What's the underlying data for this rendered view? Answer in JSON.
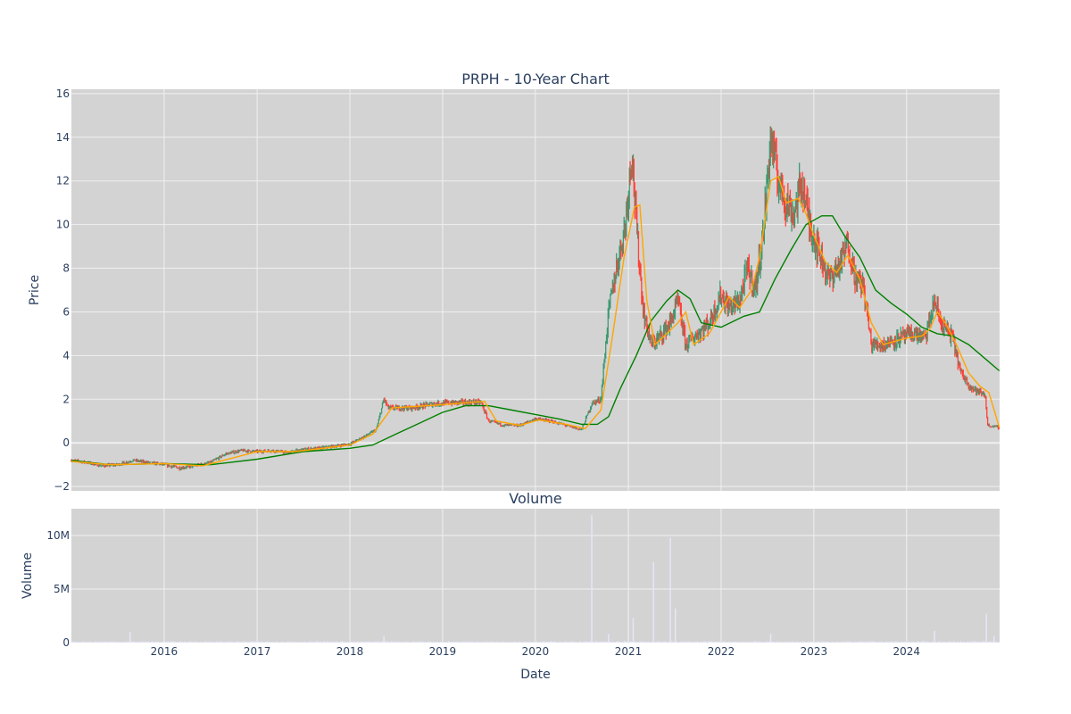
{
  "chart_data": [
    {
      "type": "candlestick",
      "title": "PRPH - 10-Year Chart",
      "ylabel": "Price",
      "ylim": [
        -2.2,
        16.2
      ],
      "y_ticks": [
        -2,
        0,
        2,
        4,
        6,
        8,
        10,
        12,
        14,
        16
      ],
      "x_range": [
        "2015-01-01",
        "2025-01-01"
      ],
      "x_ticks": [
        "2016",
        "2017",
        "2018",
        "2019",
        "2020",
        "2021",
        "2022",
        "2023",
        "2024"
      ],
      "grid": true,
      "legend": "none",
      "colors": {
        "increasing": "#3d9970",
        "decreasing": "#ff4136",
        "ma_short": "#ffa500",
        "ma_long": "#008000",
        "background": "#d3d3d3",
        "grid": "#f0f0f0"
      },
      "series": [
        {
          "kind": "close",
          "points": [
            [
              "2015-01-01",
              -0.8
            ],
            [
              "2015-03-01",
              -0.9
            ],
            [
              "2015-05-01",
              -1.05
            ],
            [
              "2015-07-01",
              -1.0
            ],
            [
              "2015-09-01",
              -0.8
            ],
            [
              "2015-11-01",
              -0.9
            ],
            [
              "2016-01-01",
              -1.0
            ],
            [
              "2016-03-01",
              -1.15
            ],
            [
              "2016-05-01",
              -1.05
            ],
            [
              "2016-07-01",
              -0.9
            ],
            [
              "2016-09-01",
              -0.5
            ],
            [
              "2016-11-01",
              -0.35
            ],
            [
              "2017-01-01",
              -0.4
            ],
            [
              "2017-03-01",
              -0.35
            ],
            [
              "2017-05-01",
              -0.45
            ],
            [
              "2017-07-01",
              -0.3
            ],
            [
              "2017-09-01",
              -0.25
            ],
            [
              "2017-11-01",
              -0.15
            ],
            [
              "2018-01-01",
              -0.05
            ],
            [
              "2018-03-01",
              0.3
            ],
            [
              "2018-04-15",
              0.6
            ],
            [
              "2018-05-15",
              2.0
            ],
            [
              "2018-06-01",
              1.6
            ],
            [
              "2018-09-01",
              1.6
            ],
            [
              "2018-12-01",
              1.8
            ],
            [
              "2019-03-01",
              1.85
            ],
            [
              "2019-06-01",
              1.85
            ],
            [
              "2019-07-01",
              1.0
            ],
            [
              "2019-09-01",
              0.8
            ],
            [
              "2019-11-01",
              0.8
            ],
            [
              "2020-01-01",
              1.1
            ],
            [
              "2020-03-01",
              1.0
            ],
            [
              "2020-05-01",
              0.8
            ],
            [
              "2020-07-01",
              0.6
            ],
            [
              "2020-08-10",
              1.8
            ],
            [
              "2020-09-15",
              2.0
            ],
            [
              "2020-10-15",
              6.0
            ],
            [
              "2020-11-15",
              8.0
            ],
            [
              "2020-12-20",
              10.0
            ],
            [
              "2021-01-15",
              13.5
            ],
            [
              "2021-02-01",
              10.0
            ],
            [
              "2021-03-01",
              6.0
            ],
            [
              "2021-04-01",
              4.5
            ],
            [
              "2021-05-01",
              4.8
            ],
            [
              "2021-06-15",
              5.5
            ],
            [
              "2021-07-15",
              6.5
            ],
            [
              "2021-08-15",
              4.5
            ],
            [
              "2021-10-01",
              5.0
            ],
            [
              "2021-11-15",
              5.5
            ],
            [
              "2022-01-01",
              6.8
            ],
            [
              "2022-02-01",
              6.2
            ],
            [
              "2022-03-15",
              6.5
            ],
            [
              "2022-04-15",
              8.0
            ],
            [
              "2022-05-15",
              7.0
            ],
            [
              "2022-06-15",
              9.5
            ],
            [
              "2022-07-15",
              14.0
            ],
            [
              "2022-08-15",
              12.0
            ],
            [
              "2022-09-15",
              11.0
            ],
            [
              "2022-10-15",
              10.5
            ],
            [
              "2022-11-15",
              12.0
            ],
            [
              "2022-12-15",
              10.0
            ],
            [
              "2023-01-15",
              9.0
            ],
            [
              "2023-03-01",
              7.5
            ],
            [
              "2023-04-15",
              8.2
            ],
            [
              "2023-05-15",
              9.2
            ],
            [
              "2023-06-15",
              7.5
            ],
            [
              "2023-07-15",
              7.2
            ],
            [
              "2023-08-15",
              4.5
            ],
            [
              "2023-10-01",
              4.5
            ],
            [
              "2023-12-01",
              4.8
            ],
            [
              "2024-02-01",
              5.0
            ],
            [
              "2024-03-15",
              4.8
            ],
            [
              "2024-04-20",
              6.5
            ],
            [
              "2024-05-15",
              5.5
            ],
            [
              "2024-07-01",
              4.8
            ],
            [
              "2024-08-01",
              3.2
            ],
            [
              "2024-09-15",
              2.5
            ],
            [
              "2024-10-15",
              2.3
            ],
            [
              "2024-11-05",
              2.2
            ],
            [
              "2024-11-15",
              0.8
            ],
            [
              "2024-12-31",
              0.7
            ]
          ]
        },
        {
          "kind": "ma_short",
          "points": [
            [
              "2015-01-01",
              -0.85
            ],
            [
              "2015-06-01",
              -1.0
            ],
            [
              "2016-01-01",
              -0.95
            ],
            [
              "2016-06-01",
              -1.05
            ],
            [
              "2017-01-01",
              -0.4
            ],
            [
              "2017-06-01",
              -0.4
            ],
            [
              "2018-01-01",
              -0.1
            ],
            [
              "2018-04-01",
              0.4
            ],
            [
              "2018-06-15",
              1.6
            ],
            [
              "2019-01-01",
              1.75
            ],
            [
              "2019-06-15",
              1.9
            ],
            [
              "2019-08-01",
              1.0
            ],
            [
              "2019-11-01",
              0.8
            ],
            [
              "2020-01-15",
              1.05
            ],
            [
              "2020-05-01",
              0.85
            ],
            [
              "2020-07-15",
              0.65
            ],
            [
              "2020-09-15",
              1.5
            ],
            [
              "2020-11-01",
              5.0
            ],
            [
              "2020-12-15",
              8.5
            ],
            [
              "2021-01-25",
              10.8
            ],
            [
              "2021-02-15",
              10.9
            ],
            [
              "2021-03-15",
              6.5
            ],
            [
              "2021-04-15",
              4.5
            ],
            [
              "2021-06-01",
              5.0
            ],
            [
              "2021-07-15",
              5.5
            ],
            [
              "2021-08-15",
              6.0
            ],
            [
              "2021-09-15",
              4.5
            ],
            [
              "2021-11-15",
              5.0
            ],
            [
              "2022-01-01",
              6.0
            ],
            [
              "2022-02-01",
              6.7
            ],
            [
              "2022-03-15",
              6.2
            ],
            [
              "2022-05-01",
              7.0
            ],
            [
              "2022-06-01",
              8.5
            ],
            [
              "2022-07-15",
              12.0
            ],
            [
              "2022-08-15",
              12.2
            ],
            [
              "2022-09-15",
              11.0
            ],
            [
              "2022-11-01",
              11.2
            ],
            [
              "2022-12-01",
              10.5
            ],
            [
              "2023-01-01",
              9.5
            ],
            [
              "2023-02-15",
              8.3
            ],
            [
              "2023-04-01",
              7.8
            ],
            [
              "2023-05-15",
              8.6
            ],
            [
              "2023-07-01",
              7.5
            ],
            [
              "2023-08-15",
              5.5
            ],
            [
              "2023-10-01",
              4.5
            ],
            [
              "2024-01-01",
              4.8
            ],
            [
              "2024-03-01",
              4.9
            ],
            [
              "2024-04-01",
              5.2
            ],
            [
              "2024-05-01",
              6.0
            ],
            [
              "2024-06-01",
              5.5
            ],
            [
              "2024-07-15",
              4.5
            ],
            [
              "2024-09-01",
              3.2
            ],
            [
              "2024-10-15",
              2.6
            ],
            [
              "2024-11-20",
              2.3
            ],
            [
              "2024-12-31",
              0.7
            ]
          ]
        },
        {
          "kind": "ma_long",
          "points": [
            [
              "2015-01-01",
              -0.8
            ],
            [
              "2015-06-01",
              -1.0
            ],
            [
              "2016-01-01",
              -0.95
            ],
            [
              "2016-07-01",
              -1.0
            ],
            [
              "2017-01-01",
              -0.75
            ],
            [
              "2017-07-01",
              -0.4
            ],
            [
              "2018-01-01",
              -0.25
            ],
            [
              "2018-04-01",
              -0.1
            ],
            [
              "2018-07-01",
              0.4
            ],
            [
              "2018-10-01",
              0.9
            ],
            [
              "2019-01-01",
              1.4
            ],
            [
              "2019-04-01",
              1.7
            ],
            [
              "2019-07-01",
              1.7
            ],
            [
              "2019-10-01",
              1.5
            ],
            [
              "2020-01-01",
              1.3
            ],
            [
              "2020-04-01",
              1.1
            ],
            [
              "2020-07-01",
              0.85
            ],
            [
              "2020-09-01",
              0.85
            ],
            [
              "2020-10-15",
              1.2
            ],
            [
              "2020-12-01",
              2.5
            ],
            [
              "2021-02-01",
              4.0
            ],
            [
              "2021-04-01",
              5.6
            ],
            [
              "2021-06-01",
              6.5
            ],
            [
              "2021-07-15",
              7.0
            ],
            [
              "2021-09-01",
              6.6
            ],
            [
              "2021-10-15",
              5.5
            ],
            [
              "2022-01-01",
              5.3
            ],
            [
              "2022-04-01",
              5.8
            ],
            [
              "2022-06-01",
              6.0
            ],
            [
              "2022-08-01",
              7.5
            ],
            [
              "2022-10-01",
              8.8
            ],
            [
              "2022-12-01",
              10.0
            ],
            [
              "2023-02-01",
              10.4
            ],
            [
              "2023-03-15",
              10.4
            ],
            [
              "2023-05-01",
              9.5
            ],
            [
              "2023-07-01",
              8.5
            ],
            [
              "2023-09-01",
              7.0
            ],
            [
              "2023-11-01",
              6.4
            ],
            [
              "2024-01-01",
              5.9
            ],
            [
              "2024-03-01",
              5.3
            ],
            [
              "2024-05-01",
              5.0
            ],
            [
              "2024-07-01",
              4.9
            ],
            [
              "2024-09-01",
              4.5
            ],
            [
              "2024-11-01",
              3.9
            ],
            [
              "2024-12-31",
              3.3
            ]
          ]
        }
      ]
    },
    {
      "type": "bar",
      "title": "Volume",
      "xlabel": "Date",
      "ylabel": "Volume",
      "ylim": [
        0,
        12500000
      ],
      "y_ticks": [
        {
          "value": 0,
          "label": "0"
        },
        {
          "value": 5000000,
          "label": "5M"
        },
        {
          "value": 10000000,
          "label": "10M"
        }
      ],
      "x_ticks": [
        "2016",
        "2017",
        "2018",
        "2019",
        "2020",
        "2021",
        "2022",
        "2023",
        "2024"
      ],
      "grid": true,
      "colors": {
        "bar": "#e6e6fa",
        "background": "#d3d3d3"
      },
      "spikes": [
        [
          "2015-08-20",
          1000000
        ],
        [
          "2018-05-15",
          600000
        ],
        [
          "2020-08-10",
          11900000
        ],
        [
          "2020-10-15",
          800000
        ],
        [
          "2021-01-20",
          2300000
        ],
        [
          "2021-04-10",
          7500000
        ],
        [
          "2021-06-15",
          9800000
        ],
        [
          "2021-07-05",
          3200000
        ],
        [
          "2022-07-15",
          800000
        ],
        [
          "2024-04-20",
          1100000
        ],
        [
          "2024-11-10",
          2700000
        ],
        [
          "2024-12-10",
          600000
        ]
      ]
    }
  ]
}
